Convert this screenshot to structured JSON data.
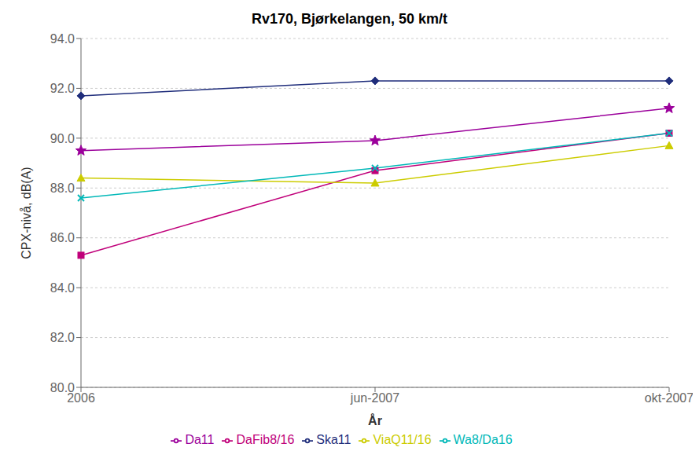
{
  "chart_data": {
    "type": "line",
    "title": "Rv170, Bjørkelangen, 50 km/t",
    "x_label": "År",
    "y_label": "CPX-nivå, dB(A)",
    "categories": [
      "2006",
      "jun-2007",
      "okt-2007"
    ],
    "series": [
      {
        "name": "Ska11",
        "color": "#1F2D7B",
        "marker": "diamond",
        "values": [
          91.7,
          92.3,
          92.3
        ]
      },
      {
        "name": "DaFib8/16",
        "color": "#C0007A",
        "marker": "square",
        "values": [
          85.3,
          88.7,
          90.2
        ]
      },
      {
        "name": "ViaQ11/16",
        "color": "#CCCC00",
        "marker": "triangle",
        "values": [
          88.4,
          88.2,
          89.7
        ]
      },
      {
        "name": "Wa8/Da16",
        "color": "#00B8B8",
        "marker": "x",
        "values": [
          87.6,
          88.8,
          90.2
        ]
      },
      {
        "name": "Da11",
        "color": "#9B009B",
        "marker": "star",
        "values": [
          89.5,
          89.9,
          91.2
        ]
      }
    ],
    "ylim": [
      80.0,
      94.0
    ],
    "yticks": [
      {
        "value": 80.0,
        "label": "80.0"
      },
      {
        "value": 82.0,
        "label": "82.0"
      },
      {
        "value": 84.0,
        "label": "84.0"
      },
      {
        "value": 86.0,
        "label": "86.0"
      },
      {
        "value": 88.0,
        "label": "88.0"
      },
      {
        "value": 90.0,
        "label": "90.0"
      },
      {
        "value": 92.0,
        "label": "92.0"
      },
      {
        "value": 94.0,
        "label": "94.0"
      }
    ],
    "grid": true,
    "legend": "bottom"
  }
}
